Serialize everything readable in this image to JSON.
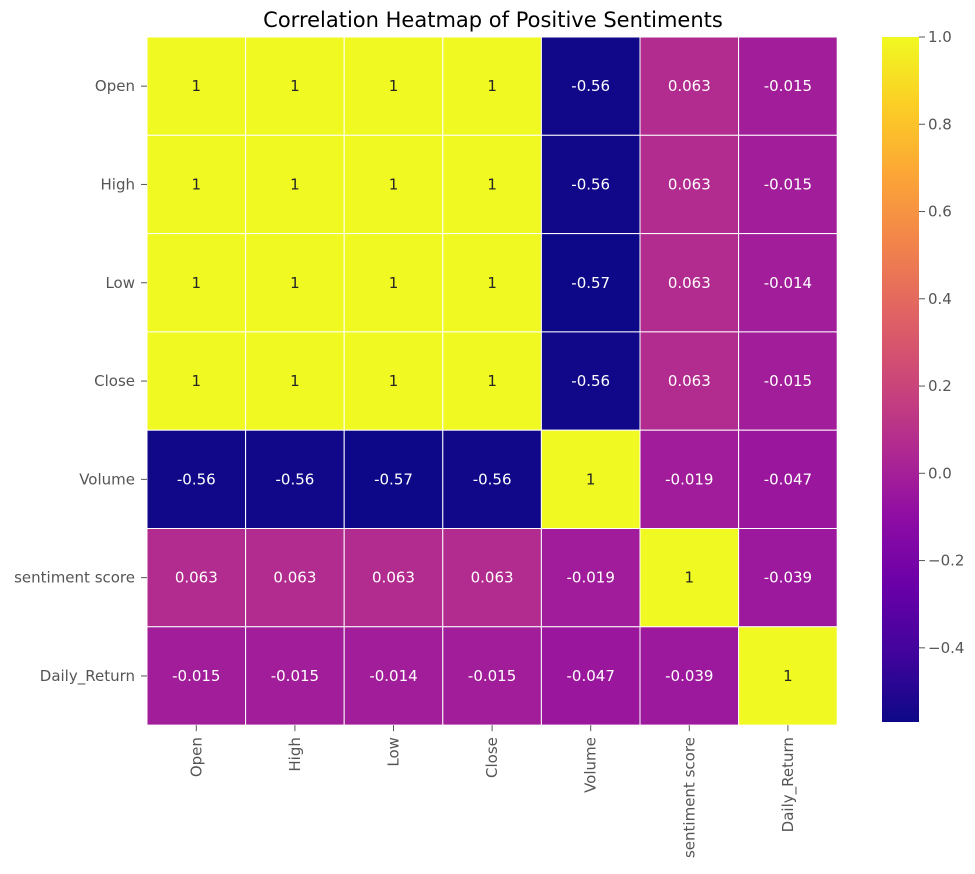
{
  "chart_data": {
    "type": "heatmap",
    "title": "Correlation Heatmap of Positive Sentiments",
    "xlabel": "",
    "ylabel": "",
    "x_categories": [
      "Open",
      "High",
      "Low",
      "Close",
      "Volume",
      "sentiment score",
      "Daily_Return"
    ],
    "y_categories": [
      "Open",
      "High",
      "Low",
      "Close",
      "Volume",
      "sentiment score",
      "Daily_Return"
    ],
    "values": [
      [
        1,
        1,
        1,
        1,
        -0.56,
        0.063,
        -0.015
      ],
      [
        1,
        1,
        1,
        1,
        -0.56,
        0.063,
        -0.015
      ],
      [
        1,
        1,
        1,
        1,
        -0.57,
        0.063,
        -0.014
      ],
      [
        1,
        1,
        1,
        1,
        -0.56,
        0.063,
        -0.015
      ],
      [
        -0.56,
        -0.56,
        -0.57,
        -0.56,
        1,
        -0.019,
        -0.047
      ],
      [
        0.063,
        0.063,
        0.063,
        0.063,
        -0.019,
        1,
        -0.039
      ],
      [
        -0.015,
        -0.015,
        -0.014,
        -0.015,
        -0.047,
        -0.039,
        1
      ]
    ],
    "labels": [
      [
        "1",
        "1",
        "1",
        "1",
        "-0.56",
        "0.063",
        "-0.015"
      ],
      [
        "1",
        "1",
        "1",
        "1",
        "-0.56",
        "0.063",
        "-0.015"
      ],
      [
        "1",
        "1",
        "1",
        "1",
        "-0.57",
        "0.063",
        "-0.014"
      ],
      [
        "1",
        "1",
        "1",
        "1",
        "-0.56",
        "0.063",
        "-0.015"
      ],
      [
        "-0.56",
        "-0.56",
        "-0.57",
        "-0.56",
        "1",
        "-0.019",
        "-0.047"
      ],
      [
        "0.063",
        "0.063",
        "0.063",
        "0.063",
        "-0.019",
        "1",
        "-0.039"
      ],
      [
        "-0.015",
        "-0.015",
        "-0.014",
        "-0.015",
        "-0.047",
        "-0.039",
        "1"
      ]
    ],
    "colormap": "plasma",
    "vmin": -0.57,
    "vmax": 1.0,
    "colorbar": {
      "ticks": [
        -0.4,
        -0.2,
        0.0,
        0.2,
        0.4,
        0.6,
        0.8,
        1.0
      ],
      "tick_labels": [
        "−0.4",
        "−0.2",
        "0.0",
        "0.2",
        "0.4",
        "0.6",
        "0.8",
        "1.0"
      ]
    },
    "grid": "white cell borders",
    "legend": "colorbar right"
  }
}
